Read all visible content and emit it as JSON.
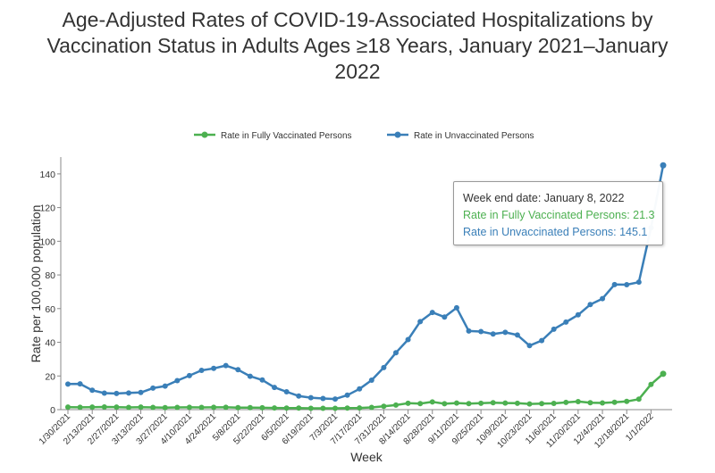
{
  "title_lines": [
    "Age-Adjusted Rates of COVID-19-Associated Hospitalizations by",
    "Vaccination Status in Adults Ages ≥18 Years, January 2021–January",
    "2022"
  ],
  "tooltip": {
    "header": "Week end date: January 8, 2022",
    "vaccinated_line": "Rate in Fully Vaccinated Persons: 21.3",
    "unvaccinated_line": "Rate in Unvaccinated Persons: 145.1"
  },
  "colors": {
    "vaccinated": "#4cb050",
    "unvaccinated": "#3a7fb8",
    "axis": "#888888",
    "text": "#333333"
  },
  "chart_data": {
    "type": "line",
    "xlabel": "Week",
    "ylabel": "Rate per 100,000 population",
    "ylim": [
      0,
      150
    ],
    "yticks": [
      0,
      20,
      40,
      60,
      80,
      100,
      120,
      140
    ],
    "grid": false,
    "legend_placement": "top-center",
    "x": [
      "1/30/2021",
      "2/6/2021",
      "2/13/2021",
      "2/20/2021",
      "2/27/2021",
      "3/6/2021",
      "3/13/2021",
      "3/20/2021",
      "3/27/2021",
      "4/3/2021",
      "4/10/2021",
      "4/17/2021",
      "4/24/2021",
      "5/1/2021",
      "5/8/2021",
      "5/15/2021",
      "5/22/2021",
      "5/29/2021",
      "6/5/2021",
      "6/12/2021",
      "6/19/2021",
      "6/26/2021",
      "7/3/2021",
      "7/10/2021",
      "7/17/2021",
      "7/24/2021",
      "7/31/2021",
      "8/7/2021",
      "8/14/2021",
      "8/21/2021",
      "8/28/2021",
      "9/4/2021",
      "9/11/2021",
      "9/18/2021",
      "9/25/2021",
      "10/2/2021",
      "10/9/2021",
      "10/16/2021",
      "10/23/2021",
      "10/30/2021",
      "11/6/2021",
      "11/13/2021",
      "11/20/2021",
      "11/27/2021",
      "12/4/2021",
      "12/11/2021",
      "12/18/2021",
      "12/25/2021",
      "1/1/2022",
      "1/8/2022"
    ],
    "x_tick_labels": [
      "1/30/2021",
      "2/13/2021",
      "2/27/2021",
      "3/13/2021",
      "3/27/2021",
      "4/10/2021",
      "4/24/2021",
      "5/8/2021",
      "5/22/2021",
      "6/5/2021",
      "6/19/2021",
      "7/3/2021",
      "7/17/2021",
      "7/31/2021",
      "8/14/2021",
      "8/28/2021",
      "9/11/2021",
      "9/25/2021",
      "10/9/2021",
      "10/23/2021",
      "11/6/2021",
      "11/20/2021",
      "12/4/2021",
      "12/18/2021",
      "1/1/2022"
    ],
    "series": [
      {
        "name": "Rate in Fully Vaccinated Persons",
        "values": [
          1.5,
          1.4,
          1.5,
          1.6,
          1.5,
          1.3,
          1.5,
          1.3,
          1.2,
          1.3,
          1.4,
          1.3,
          1.4,
          1.4,
          1.2,
          1.2,
          1.1,
          1.0,
          0.9,
          0.9,
          0.8,
          0.8,
          0.8,
          0.9,
          1.0,
          1.3,
          2.0,
          2.7,
          3.8,
          3.6,
          4.6,
          3.5,
          3.9,
          3.6,
          3.8,
          4.1,
          3.9,
          3.8,
          3.4,
          3.6,
          3.7,
          4.3,
          4.8,
          4.1,
          4.0,
          4.4,
          4.9,
          6.2,
          15.0,
          21.3
        ]
      },
      {
        "name": "Rate in Unvaccinated Persons",
        "values": [
          15.2,
          15.3,
          11.5,
          9.8,
          9.6,
          9.9,
          10.2,
          12.8,
          14.0,
          17.2,
          20.2,
          23.3,
          24.5,
          26.2,
          23.7,
          19.8,
          17.6,
          13.2,
          10.6,
          8.1,
          7.1,
          6.6,
          6.3,
          8.6,
          12.3,
          17.5,
          25.0,
          33.8,
          41.6,
          52.3,
          57.7,
          55.0,
          60.5,
          46.7,
          46.4,
          44.9,
          45.9,
          44.3,
          38.0,
          41.0,
          47.8,
          52.0,
          56.3,
          62.4,
          65.9,
          74.3,
          74.2,
          75.7,
          108.0,
          145.1
        ]
      }
    ]
  },
  "tooltip_index": 49
}
